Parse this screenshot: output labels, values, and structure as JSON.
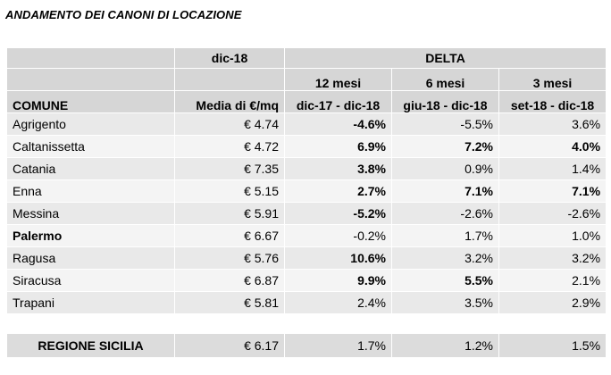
{
  "title": "ANDAMENTO DEI CANONI DI LOCAZIONE",
  "header": {
    "period_current": "dic-18",
    "delta": "DELTA",
    "comune": "COMUNE",
    "media": "Media di €/mq",
    "col12_line1": "12 mesi",
    "col12_line2": "dic-17 - dic-18",
    "col6_line1": "6 mesi",
    "col6_line2": "giu-18 - dic-18",
    "col3_line1": "3 mesi",
    "col3_line2": "set-18 - dic-18"
  },
  "rows": [
    {
      "name": "Agrigento",
      "media": "€ 4.74",
      "d12": "-4.6%",
      "d6": "-5.5%",
      "d3": "3.6%"
    },
    {
      "name": "Caltanissetta",
      "media": "€ 4.72",
      "d12": "6.9%",
      "d6": "7.2%",
      "d3": "4.0%"
    },
    {
      "name": "Catania",
      "media": "€ 7.35",
      "d12": "3.8%",
      "d6": "0.9%",
      "d3": "1.4%"
    },
    {
      "name": "Enna",
      "media": "€ 5.15",
      "d12": "2.7%",
      "d6": "7.1%",
      "d3": "7.1%"
    },
    {
      "name": "Messina",
      "media": "€ 5.91",
      "d12": "-5.2%",
      "d6": "-2.6%",
      "d3": "-2.6%"
    },
    {
      "name": "Palermo",
      "media": "€ 6.67",
      "d12": "-0.2%",
      "d6": "1.7%",
      "d3": "1.0%"
    },
    {
      "name": "Ragusa",
      "media": "€ 5.76",
      "d12": "10.6%",
      "d6": "3.2%",
      "d3": "3.2%"
    },
    {
      "name": "Siracusa",
      "media": "€ 6.87",
      "d12": "9.9%",
      "d6": "5.5%",
      "d3": "2.1%"
    },
    {
      "name": "Trapani",
      "media": "€ 5.81",
      "d12": "2.4%",
      "d6": "3.5%",
      "d3": "2.9%"
    }
  ],
  "total": {
    "name": "REGIONE SICILIA",
    "media": "€ 6.17",
    "d12": "1.7%",
    "d6": "1.2%",
    "d3": "1.5%"
  }
}
